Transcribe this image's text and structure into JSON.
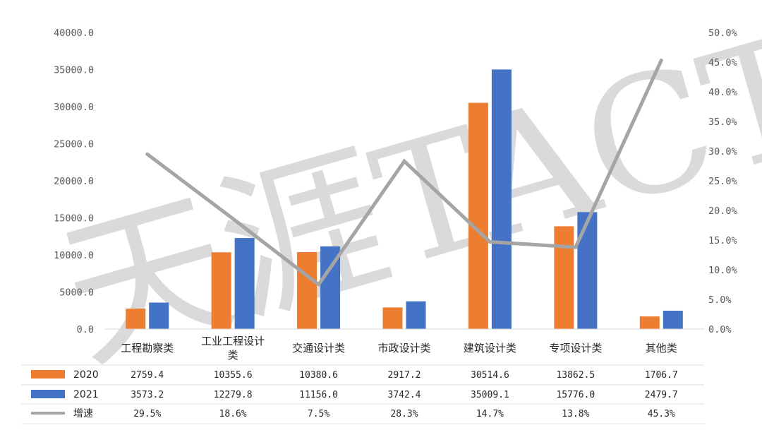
{
  "watermark": "天涯TACTER",
  "chart_data": {
    "type": "bar",
    "title": "",
    "categories": [
      "工程勘察类",
      "工业工程设计类",
      "交通设计类",
      "市政设计类",
      "建筑设计类",
      "专项设计类",
      "其他类"
    ],
    "series": [
      {
        "name": "2020",
        "type": "bar",
        "axis": "left",
        "color": "#ED7D31",
        "values": [
          2759.4,
          10355.6,
          10380.6,
          2917.2,
          30514.6,
          13862.5,
          1706.7
        ],
        "labels": [
          "2759.4",
          "10355.6",
          "10380.6",
          "2917.2",
          "30514.6",
          "13862.5",
          "1706.7"
        ]
      },
      {
        "name": "2021",
        "type": "bar",
        "axis": "left",
        "color": "#4472C4",
        "values": [
          3573.2,
          12279.8,
          11156.0,
          3742.4,
          35009.1,
          15776.0,
          2479.7
        ],
        "labels": [
          "3573.2",
          "12279.8",
          "11156.0",
          "3742.4",
          "35009.1",
          "15776.0",
          "2479.7"
        ]
      },
      {
        "name": "增速",
        "type": "line",
        "axis": "right",
        "color": "#A5A5A5",
        "values": [
          29.5,
          18.6,
          7.5,
          28.3,
          14.7,
          13.8,
          45.3
        ],
        "labels": [
          "29.5%",
          "18.6%",
          "7.5%",
          "28.3%",
          "14.7%",
          "13.8%",
          "45.3%"
        ]
      }
    ],
    "y_left": {
      "min": 0,
      "max": 40000,
      "ticks": [
        "0.0",
        "5000.0",
        "10000.0",
        "15000.0",
        "20000.0",
        "25000.0",
        "30000.0",
        "35000.0",
        "40000.0"
      ]
    },
    "y_right": {
      "min": 0,
      "max": 50,
      "ticks": [
        "0.0%",
        "5.0%",
        "10.0%",
        "15.0%",
        "20.0%",
        "25.0%",
        "30.0%",
        "35.0%",
        "40.0%",
        "45.0%",
        "50.0%"
      ]
    },
    "legend": "data-table-bottom",
    "grid": false
  }
}
